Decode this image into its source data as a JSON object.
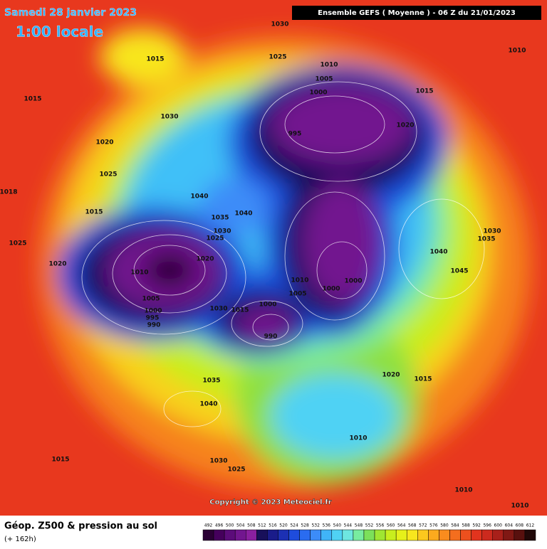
{
  "header": {
    "date": "Samedi 28 janvier 2023",
    "time": "1:00 locale",
    "model": "Ensemble GEFS  ( Moyenne )  -  06 Z du 21/01/2023",
    "copyright": "Copyright © 2023 Meteociel.fr"
  },
  "footer": {
    "title": "Géop. Z500 & pression au sol",
    "lead": "(+ 162h)"
  },
  "colorbar": {
    "ticks": [
      492,
      496,
      500,
      504,
      508,
      512,
      516,
      520,
      524,
      528,
      532,
      536,
      540,
      544,
      548,
      552,
      556,
      560,
      564,
      568,
      572,
      576,
      580,
      584,
      588,
      592,
      596,
      600,
      604,
      608,
      612
    ],
    "colors": [
      "#2a0034",
      "#45005c",
      "#5c0c7a",
      "#72168f",
      "#8a20a0",
      "#18105a",
      "#1a1c8a",
      "#1c30b4",
      "#1e4cdc",
      "#2a6cf0",
      "#3c8cf8",
      "#40b4f8",
      "#50d2f4",
      "#6ee6e0",
      "#78eca0",
      "#7ce05a",
      "#a0e632",
      "#c8ee1e",
      "#e6f01a",
      "#f8e61e",
      "#fcc81e",
      "#fcaa1e",
      "#fa8c1e",
      "#f46e1e",
      "#ec501e",
      "#e2341e",
      "#cc2a1e",
      "#a8201a",
      "#801814",
      "#58100e",
      "#200808"
    ]
  },
  "isobar_labels": [
    1030,
    1010,
    1015,
    1025,
    1010,
    1005,
    1000,
    1015,
    1015,
    1030,
    995,
    1020,
    1020,
    1025,
    1018,
    1040,
    1015,
    1035,
    1040,
    1030,
    1025,
    1030,
    1035,
    1025,
    1040,
    1020,
    1020,
    1010,
    1045,
    1010,
    1000,
    1000,
    1005,
    1005,
    1000,
    1000,
    1030,
    1015,
    995,
    990,
    990,
    1020,
    1015,
    1035,
    1040,
    1010,
    1015,
    1030,
    1025,
    1010,
    1010
  ]
}
